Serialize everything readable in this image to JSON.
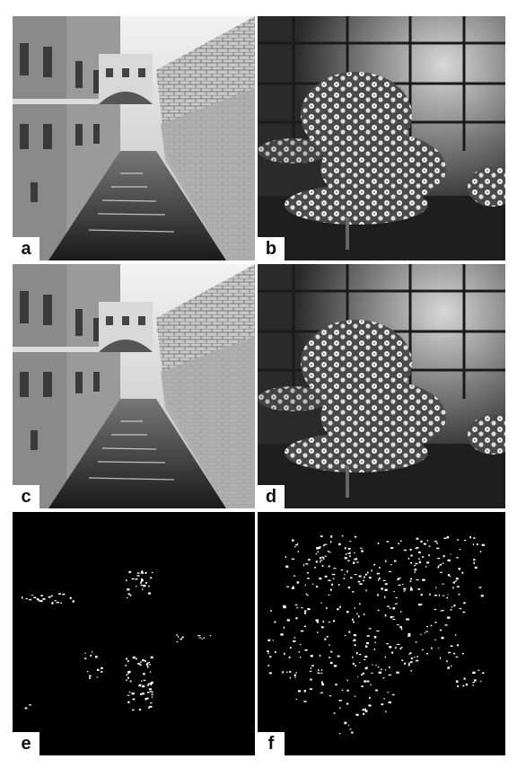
{
  "panels": [
    {
      "id": "a",
      "label": "a",
      "scene": "canal"
    },
    {
      "id": "b",
      "label": "b",
      "scene": "greenhouse"
    },
    {
      "id": "c",
      "label": "c",
      "scene": "canal"
    },
    {
      "id": "d",
      "label": "d",
      "scene": "greenhouse"
    },
    {
      "id": "e",
      "label": "e",
      "scene": "canal-edges"
    },
    {
      "id": "f",
      "label": "f",
      "scene": "greenhouse-edges"
    }
  ]
}
